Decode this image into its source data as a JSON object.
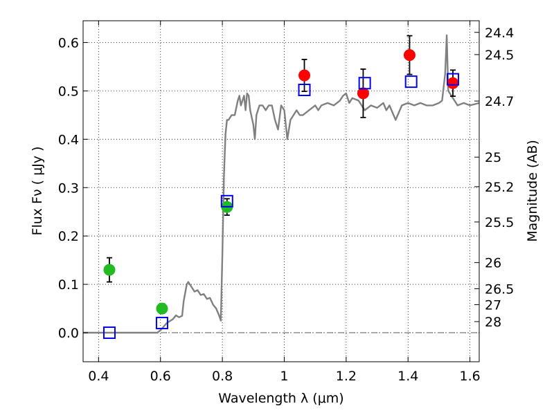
{
  "chart_data": {
    "type": "scatter",
    "xlabel": "Wavelength  λ (μm)",
    "ylabel": "Flux  Fν  ( μJy )",
    "y2label": "Magnitude (AB)",
    "xlim": [
      0.35,
      1.63
    ],
    "ylim": [
      -0.06,
      0.645
    ],
    "x_ticks": [
      0.4,
      0.6,
      0.8,
      1.0,
      1.2,
      1.4,
      1.6
    ],
    "x_tick_labels": [
      "0.4",
      "0.6",
      "0.8",
      "1",
      "1.2",
      "1.4",
      "1.6"
    ],
    "y_ticks": [
      0.0,
      0.1,
      0.2,
      0.3,
      0.4,
      0.5,
      0.6
    ],
    "y_tick_labels": [
      "0.0",
      "0.1",
      "0.2",
      "0.3",
      "0.4",
      "0.5",
      "0.6"
    ],
    "right_ticks": [
      {
        "label": "24.4",
        "flux": 0.621
      },
      {
        "label": "24.5",
        "flux": 0.575
      },
      {
        "label": "24.7",
        "flux": 0.479
      },
      {
        "label": "25",
        "flux": 0.363
      },
      {
        "label": "25.2",
        "flux": 0.302
      },
      {
        "label": "25.5",
        "flux": 0.229
      },
      {
        "label": "26",
        "flux": 0.145
      },
      {
        "label": "26.5",
        "flux": 0.091
      },
      {
        "label": "27",
        "flux": 0.058
      },
      {
        "label": "28",
        "flux": 0.023
      }
    ],
    "grid": true,
    "zero_line": true,
    "series": [
      {
        "style": "line",
        "color": "#808080",
        "x": [
          0.35,
          0.59,
          0.6,
          0.62,
          0.64,
          0.65,
          0.66,
          0.67,
          0.675,
          0.685,
          0.69,
          0.7,
          0.71,
          0.72,
          0.73,
          0.74,
          0.75,
          0.76,
          0.77,
          0.78,
          0.79,
          0.795,
          0.8,
          0.805,
          0.81,
          0.815,
          0.82,
          0.83,
          0.84,
          0.85,
          0.855,
          0.86,
          0.87,
          0.875,
          0.88,
          0.885,
          0.89,
          0.9,
          0.905,
          0.91,
          0.92,
          0.93,
          0.94,
          0.95,
          0.96,
          0.97,
          0.98,
          0.99,
          1.0,
          1.01,
          1.02,
          1.03,
          1.04,
          1.05,
          1.06,
          1.08,
          1.1,
          1.11,
          1.12,
          1.14,
          1.16,
          1.18,
          1.19,
          1.2,
          1.21,
          1.22,
          1.24,
          1.26,
          1.28,
          1.3,
          1.32,
          1.33,
          1.34,
          1.36,
          1.38,
          1.4,
          1.42,
          1.44,
          1.46,
          1.48,
          1.5,
          1.51,
          1.52,
          1.525,
          1.53,
          1.54,
          1.55,
          1.56,
          1.58,
          1.6,
          1.63
        ],
        "values": [
          0.0,
          0.0,
          0.005,
          0.02,
          0.028,
          0.036,
          0.032,
          0.035,
          0.065,
          0.1,
          0.105,
          0.095,
          0.085,
          0.088,
          0.078,
          0.08,
          0.07,
          0.072,
          0.058,
          0.05,
          0.035,
          0.025,
          0.16,
          0.32,
          0.41,
          0.44,
          0.44,
          0.45,
          0.45,
          0.48,
          0.49,
          0.47,
          0.49,
          0.46,
          0.495,
          0.49,
          0.46,
          0.43,
          0.4,
          0.45,
          0.47,
          0.47,
          0.46,
          0.47,
          0.47,
          0.44,
          0.42,
          0.47,
          0.46,
          0.4,
          0.44,
          0.45,
          0.46,
          0.45,
          0.45,
          0.46,
          0.47,
          0.46,
          0.47,
          0.475,
          0.47,
          0.48,
          0.49,
          0.495,
          0.475,
          0.485,
          0.48,
          0.46,
          0.47,
          0.465,
          0.475,
          0.46,
          0.47,
          0.44,
          0.47,
          0.475,
          0.47,
          0.475,
          0.47,
          0.47,
          0.475,
          0.48,
          0.535,
          0.615,
          0.5,
          0.49,
          0.48,
          0.47,
          0.475,
          0.47,
          0.475
        ]
      },
      {
        "style": "markers",
        "marker": "circle",
        "color": "#22bb22",
        "x": [
          0.435,
          0.605,
          0.815
        ],
        "values": [
          0.13,
          0.05,
          0.26
        ],
        "yerr": [
          0.025,
          0.01,
          0.017
        ]
      },
      {
        "style": "markers",
        "marker": "circle",
        "color": "#ff0000",
        "x": [
          1.065,
          1.255,
          1.405,
          1.545
        ],
        "values": [
          0.532,
          0.495,
          0.574,
          0.516
        ],
        "yerr": [
          0.033,
          0.05,
          0.04,
          0.027
        ]
      },
      {
        "style": "markers",
        "marker": "open-square",
        "color": "#0000ff",
        "x": [
          0.435,
          0.605,
          0.815,
          1.065,
          1.26,
          1.41,
          1.545
        ],
        "values": [
          0.0,
          0.02,
          0.272,
          0.502,
          0.516,
          0.519,
          0.524
        ]
      }
    ]
  }
}
